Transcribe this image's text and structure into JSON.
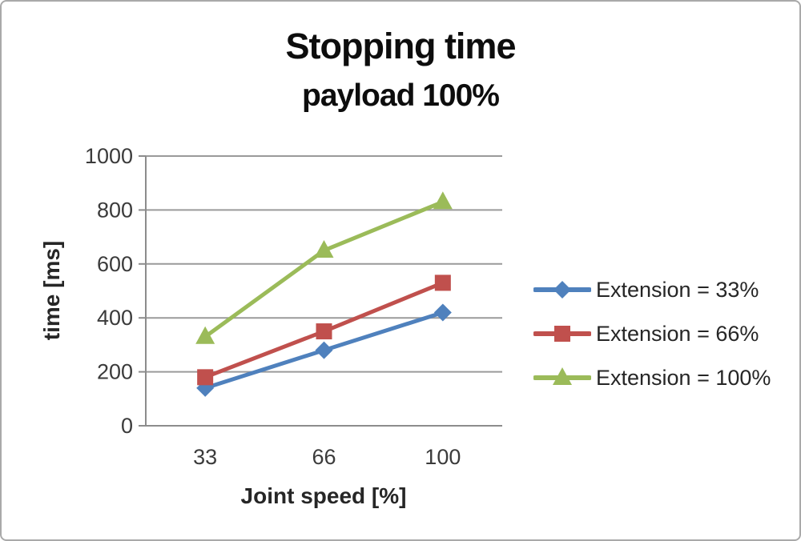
{
  "chart_data": {
    "type": "line",
    "title": "Stopping time",
    "subtitle": "payload 100%",
    "xlabel": "Joint speed [%]",
    "ylabel": "time [ms]",
    "categories": [
      "33",
      "66",
      "100"
    ],
    "ylim": [
      0,
      1000
    ],
    "yticks": [
      0,
      200,
      400,
      600,
      800,
      1000
    ],
    "grid": "horizontal",
    "legend_position": "right",
    "series": [
      {
        "name": "Extension = 33%",
        "color": "#4F81BD",
        "marker": "diamond",
        "values": [
          140,
          280,
          420
        ]
      },
      {
        "name": "Extension = 66%",
        "color": "#C0504D",
        "marker": "square",
        "values": [
          180,
          350,
          530
        ]
      },
      {
        "name": "Extension = 100%",
        "color": "#9BBB59",
        "marker": "triangle",
        "values": [
          330,
          650,
          830
        ]
      }
    ]
  }
}
